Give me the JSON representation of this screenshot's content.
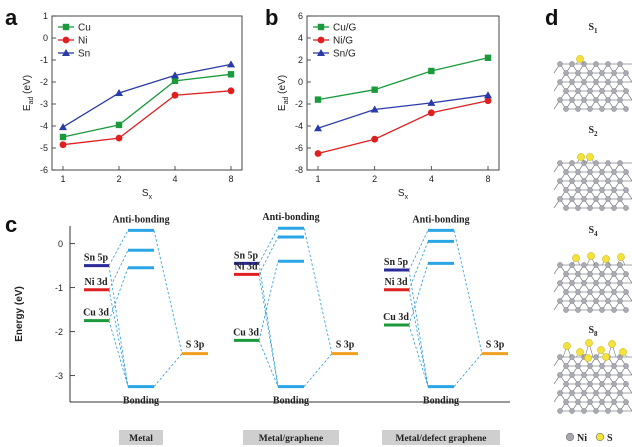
{
  "panels": {
    "a": "a",
    "b": "b",
    "c": "c",
    "d": "d"
  },
  "chart_data": [
    {
      "type": "line",
      "panel": "a",
      "categories": [
        "1",
        "2",
        "4",
        "8"
      ],
      "xlabel": "S",
      "xlabel_sub": "x",
      "ylabel": "E",
      "ylabel_sub": "ad",
      "ylabel_unit": " (eV)",
      "ylim": [
        -6,
        1
      ],
      "yticks": [
        "1",
        "0",
        "-1",
        "-2",
        "-3",
        "-4",
        "-5",
        "-6"
      ],
      "legend_position": "top-left",
      "series": [
        {
          "name": "Cu",
          "color": "#1a9a3a",
          "marker": "square",
          "values": [
            -4.5,
            -3.95,
            -1.95,
            -1.65
          ]
        },
        {
          "name": "Ni",
          "color": "#e02020",
          "marker": "circle",
          "values": [
            -4.85,
            -4.55,
            -2.6,
            -2.4
          ]
        },
        {
          "name": "Sn",
          "color": "#2a3aa8",
          "marker": "triangle",
          "values": [
            -4.05,
            -2.5,
            -1.7,
            -1.2
          ]
        }
      ]
    },
    {
      "type": "line",
      "panel": "b",
      "categories": [
        "1",
        "2",
        "4",
        "8"
      ],
      "xlabel": "S",
      "xlabel_sub": "x",
      "ylabel": "E",
      "ylabel_sub": "ad",
      "ylabel_unit": " (eV)",
      "ylim": [
        -8,
        6
      ],
      "yticks": [
        "6",
        "4",
        "2",
        "0",
        "-2",
        "-4",
        "-6",
        "-8"
      ],
      "legend_position": "top-left",
      "series": [
        {
          "name": "Cu/G",
          "color": "#1a9a3a",
          "marker": "square",
          "values": [
            -1.6,
            -0.7,
            1.0,
            2.2
          ]
        },
        {
          "name": "Ni/G",
          "color": "#e02020",
          "marker": "circle",
          "values": [
            -6.5,
            -5.2,
            -2.8,
            -1.7
          ]
        },
        {
          "name": "Sn/G",
          "color": "#2a3aa8",
          "marker": "triangle",
          "values": [
            -4.2,
            -2.5,
            -1.9,
            -1.2
          ]
        }
      ]
    },
    {
      "type": "diagram",
      "panel": "c",
      "ylabel": "Energy (eV)",
      "ylim": [
        -3.6,
        0.4
      ],
      "yticks": [
        "0",
        "-1",
        "-2",
        "-3"
      ],
      "top_label": "Anti-bonding",
      "bottom_label": "Bonding",
      "s3p_label": "S 3p",
      "s3p_energy": -2.5,
      "colors": {
        "sn": "#2a2a9a",
        "ni": "#e02020",
        "cu": "#1a9a3a",
        "s": "#f0a020",
        "orbital": "#2aa6e6",
        "dash": "#2a9ad8"
      },
      "groups": [
        {
          "caption": "Metal",
          "metal_levels": [
            {
              "label": "Sn 5p",
              "energy": -0.5,
              "color": "#2a2a9a"
            },
            {
              "label": "Ni 3d",
              "energy": -1.05,
              "color": "#e02020"
            },
            {
              "label": "Cu 3d",
              "energy": -1.75,
              "color": "#1a9a3a"
            }
          ],
          "antibonding": [
            0.3,
            -0.15,
            -0.55
          ],
          "bonding": -3.25
        },
        {
          "caption": "Metal/graphene",
          "metal_levels": [
            {
              "label": "Sn 5p",
              "energy": -0.45,
              "color": "#2a2a9a"
            },
            {
              "label": "Ni 3d",
              "energy": -0.7,
              "color": "#e02020"
            },
            {
              "label": "Cu 3d",
              "energy": -2.2,
              "color": "#1a9a3a"
            }
          ],
          "antibonding": [
            0.35,
            0.15,
            -0.4
          ],
          "bonding": -3.25
        },
        {
          "caption": "Metal/defect graphene",
          "metal_levels": [
            {
              "label": "Sn 5p",
              "energy": -0.6,
              "color": "#2a2a9a"
            },
            {
              "label": "Ni 3d",
              "energy": -1.05,
              "color": "#e02020"
            },
            {
              "label": "Cu 3d",
              "energy": -1.85,
              "color": "#1a9a3a"
            }
          ],
          "antibonding": [
            0.3,
            0.05,
            -0.45
          ],
          "bonding": -3.25
        }
      ]
    }
  ],
  "structures": {
    "labels": [
      {
        "main": "S",
        "sub": "1"
      },
      {
        "main": "S",
        "sub": "2"
      },
      {
        "main": "S",
        "sub": "4"
      },
      {
        "main": "S",
        "sub": "8"
      }
    ],
    "legend": [
      {
        "label": "Ni",
        "color": "#a8a8b0"
      },
      {
        "label": "S",
        "color": "#f2e23a"
      }
    ],
    "atom_colors": {
      "ni": "#a9aab2",
      "ni_edge": "#7c7d86",
      "s": "#f2e23a",
      "s_edge": "#c9b21a"
    }
  }
}
